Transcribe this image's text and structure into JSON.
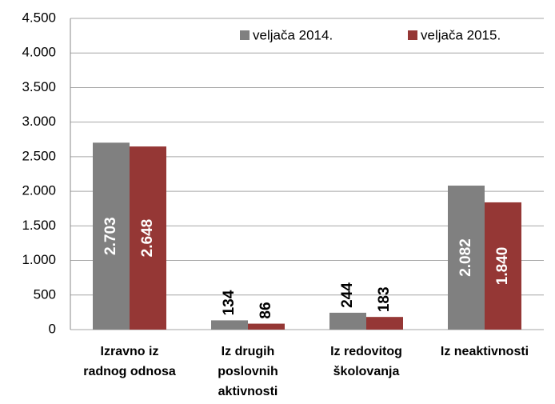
{
  "chart_data": {
    "type": "bar",
    "categories": [
      [
        "Izravno iz",
        "radnog odnosa"
      ],
      [
        "Iz drugih",
        "poslovnih",
        "aktivnosti"
      ],
      [
        "Iz redovitog",
        "školovanja"
      ],
      [
        "Iz neaktivnosti"
      ]
    ],
    "series": [
      {
        "name": "veljača 2014.",
        "color": "#808080",
        "values": [
          2703,
          134,
          244,
          2082
        ],
        "value_labels": [
          "2.703",
          "134",
          "244",
          "2.082"
        ]
      },
      {
        "name": "veljača 2015.",
        "color": "#953735",
        "values": [
          2648,
          86,
          183,
          1840
        ],
        "value_labels": [
          "2.648",
          "86",
          "183",
          "1.840"
        ]
      }
    ],
    "ylim": [
      0,
      4500
    ],
    "yticks": [
      0,
      500,
      {
        "value": 1000,
        "label": "1.000"
      },
      {
        "value": 1500,
        "label": "1.500"
      },
      {
        "value": 2000,
        "label": "2.000"
      },
      {
        "value": 2500,
        "label": "2.500"
      },
      {
        "value": 3000,
        "label": "3.000"
      },
      {
        "value": 3500,
        "label": "3.500"
      },
      {
        "value": 4000,
        "label": "4.000"
      },
      {
        "value": 4500,
        "label": "4.500"
      }
    ],
    "grid": true,
    "legend": "top"
  }
}
